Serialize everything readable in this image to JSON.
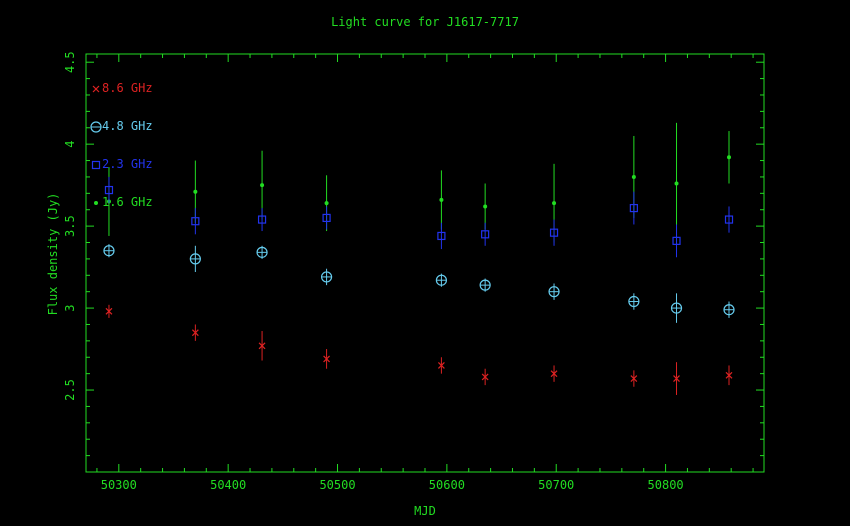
{
  "chart_data": {
    "type": "scatter",
    "title": "Light curve for J1617-7717",
    "xlabel": "MJD",
    "ylabel": "Flux density (Jy)",
    "xlim": [
      50270,
      50890
    ],
    "ylim": [
      2.0,
      4.55
    ],
    "x_ticks": [
      50300,
      50400,
      50500,
      50600,
      50700,
      50800
    ],
    "y_ticks": [
      2.5,
      3,
      3.5,
      4,
      4.5
    ],
    "y_tick_labels": [
      "2.5",
      "3",
      "3.5",
      "4",
      "4.5"
    ],
    "legend_position": "top-left",
    "colors": {
      "axes": "#22dd22",
      "title": "#22dd22",
      "red": "#dd2222",
      "cyan": "#66ccee",
      "blue": "#2233ee",
      "green": "#22dd22"
    },
    "series": [
      {
        "name": "8.6 GHz",
        "color": "#dd2222",
        "marker": "cross",
        "points": [
          {
            "x": 50291,
            "y": 2.98,
            "err": 0.04
          },
          {
            "x": 50370,
            "y": 2.85,
            "err": 0.05
          },
          {
            "x": 50431,
            "y": 2.77,
            "err": 0.09
          },
          {
            "x": 50490,
            "y": 2.69,
            "err": 0.06
          },
          {
            "x": 50595,
            "y": 2.65,
            "err": 0.05
          },
          {
            "x": 50635,
            "y": 2.58,
            "err": 0.05
          },
          {
            "x": 50698,
            "y": 2.6,
            "err": 0.05
          },
          {
            "x": 50771,
            "y": 2.57,
            "err": 0.05
          },
          {
            "x": 50810,
            "y": 2.57,
            "err": 0.1
          },
          {
            "x": 50858,
            "y": 2.59,
            "err": 0.06
          }
        ]
      },
      {
        "name": "4.8 GHz",
        "color": "#66ccee",
        "marker": "circle-plus",
        "points": [
          {
            "x": 50291,
            "y": 3.35,
            "err": 0.04
          },
          {
            "x": 50370,
            "y": 3.3,
            "err": 0.08
          },
          {
            "x": 50431,
            "y": 3.34,
            "err": 0.04
          },
          {
            "x": 50490,
            "y": 3.19,
            "err": 0.05
          },
          {
            "x": 50595,
            "y": 3.17,
            "err": 0.04
          },
          {
            "x": 50635,
            "y": 3.14,
            "err": 0.04
          },
          {
            "x": 50698,
            "y": 3.1,
            "err": 0.05
          },
          {
            "x": 50771,
            "y": 3.04,
            "err": 0.05
          },
          {
            "x": 50810,
            "y": 3.0,
            "err": 0.09
          },
          {
            "x": 50858,
            "y": 2.99,
            "err": 0.05
          }
        ]
      },
      {
        "name": "2.3 GHz",
        "color": "#2233ee",
        "marker": "square",
        "points": [
          {
            "x": 50291,
            "y": 3.72,
            "err": 0.08
          },
          {
            "x": 50370,
            "y": 3.53,
            "err": 0.08
          },
          {
            "x": 50431,
            "y": 3.54,
            "err": 0.07
          },
          {
            "x": 50490,
            "y": 3.55,
            "err": 0.07
          },
          {
            "x": 50595,
            "y": 3.44,
            "err": 0.08
          },
          {
            "x": 50635,
            "y": 3.45,
            "err": 0.07
          },
          {
            "x": 50698,
            "y": 3.46,
            "err": 0.08
          },
          {
            "x": 50771,
            "y": 3.61,
            "err": 0.1
          },
          {
            "x": 50810,
            "y": 3.41,
            "err": 0.1
          },
          {
            "x": 50858,
            "y": 3.54,
            "err": 0.08
          }
        ]
      },
      {
        "name": "1.6 GHz",
        "color": "#22dd22",
        "marker": "dot",
        "points": [
          {
            "x": 50291,
            "y": 3.65,
            "err": 0.21
          },
          {
            "x": 50370,
            "y": 3.71,
            "err": 0.19
          },
          {
            "x": 50431,
            "y": 3.75,
            "err": 0.21
          },
          {
            "x": 50490,
            "y": 3.64,
            "err": 0.17
          },
          {
            "x": 50595,
            "y": 3.66,
            "err": 0.18
          },
          {
            "x": 50635,
            "y": 3.62,
            "err": 0.14
          },
          {
            "x": 50698,
            "y": 3.64,
            "err": 0.24
          },
          {
            "x": 50771,
            "y": 3.8,
            "err": 0.25
          },
          {
            "x": 50810,
            "y": 3.76,
            "err": 0.37
          },
          {
            "x": 50858,
            "y": 3.92,
            "err": 0.16
          }
        ]
      }
    ],
    "legend_order": [
      "8.6 GHz",
      "4.8 GHz",
      "2.3 GHz",
      "1.6 GHz"
    ]
  }
}
